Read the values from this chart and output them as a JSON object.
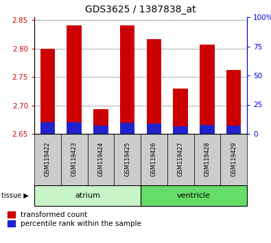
{
  "title": "GDS3625 / 1387838_at",
  "samples": [
    "GSM119422",
    "GSM119423",
    "GSM119424",
    "GSM119425",
    "GSM119426",
    "GSM119427",
    "GSM119428",
    "GSM119429"
  ],
  "red_values": [
    2.8,
    2.84,
    2.693,
    2.84,
    2.817,
    2.73,
    2.807,
    2.762
  ],
  "blue_values": [
    2.671,
    2.671,
    2.664,
    2.669,
    2.668,
    2.663,
    2.666,
    2.664
  ],
  "base": 2.65,
  "ylim": [
    2.65,
    2.855
  ],
  "yticks": [
    2.65,
    2.7,
    2.75,
    2.8,
    2.85
  ],
  "right_yticks_vals": [
    0,
    25,
    50,
    75,
    100
  ],
  "right_yticks_labels": [
    "0",
    "25",
    "50",
    "75",
    "100%"
  ],
  "tissue_labels": [
    "atrium",
    "ventricle"
  ],
  "tissue_split": 4,
  "tissue_color_left": "#c8f5c8",
  "tissue_color_right": "#66dd66",
  "bar_width": 0.55,
  "red_color": "#cc0000",
  "blue_color": "#2222cc",
  "left_tick_color": "#cc0000",
  "right_tick_color": "#0000cc",
  "grid_color": "#000000",
  "sample_box_color": "#cccccc",
  "legend_items": [
    "transformed count",
    "percentile rank within the sample"
  ]
}
